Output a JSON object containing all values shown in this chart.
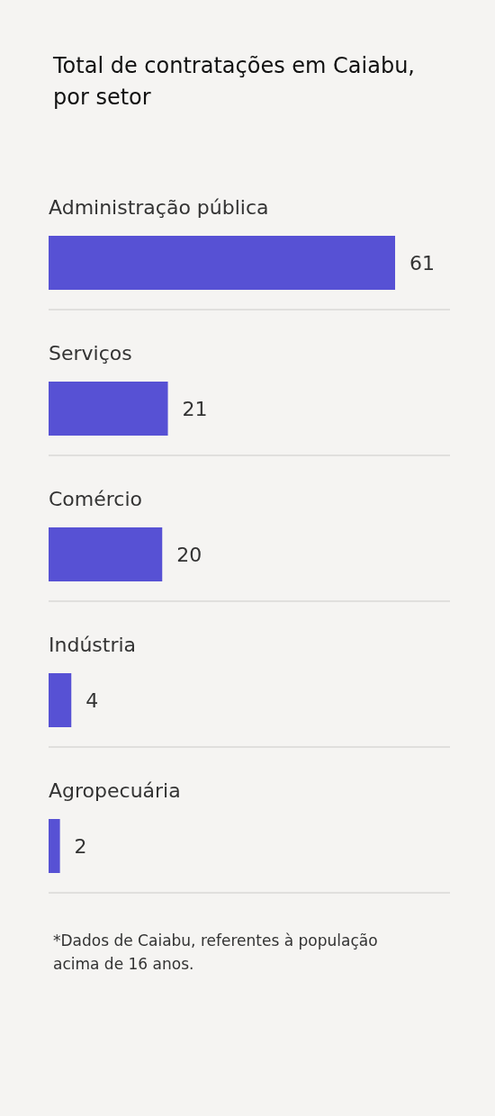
{
  "chart_data": {
    "type": "bar",
    "title": "Total de contratações em Caiabu, por setor",
    "annotations": [
      "*Dados de Caiabu, referentes à população acima de 16 anos."
    ],
    "categories": [
      "Administração pública",
      "Serviços",
      "Comércio",
      "Indústria",
      "Agropecuária"
    ],
    "values": [
      61,
      21,
      20,
      4,
      2
    ],
    "color": "#5751d4",
    "orientation": "horizontal",
    "data_labels": true,
    "grid": "y"
  }
}
